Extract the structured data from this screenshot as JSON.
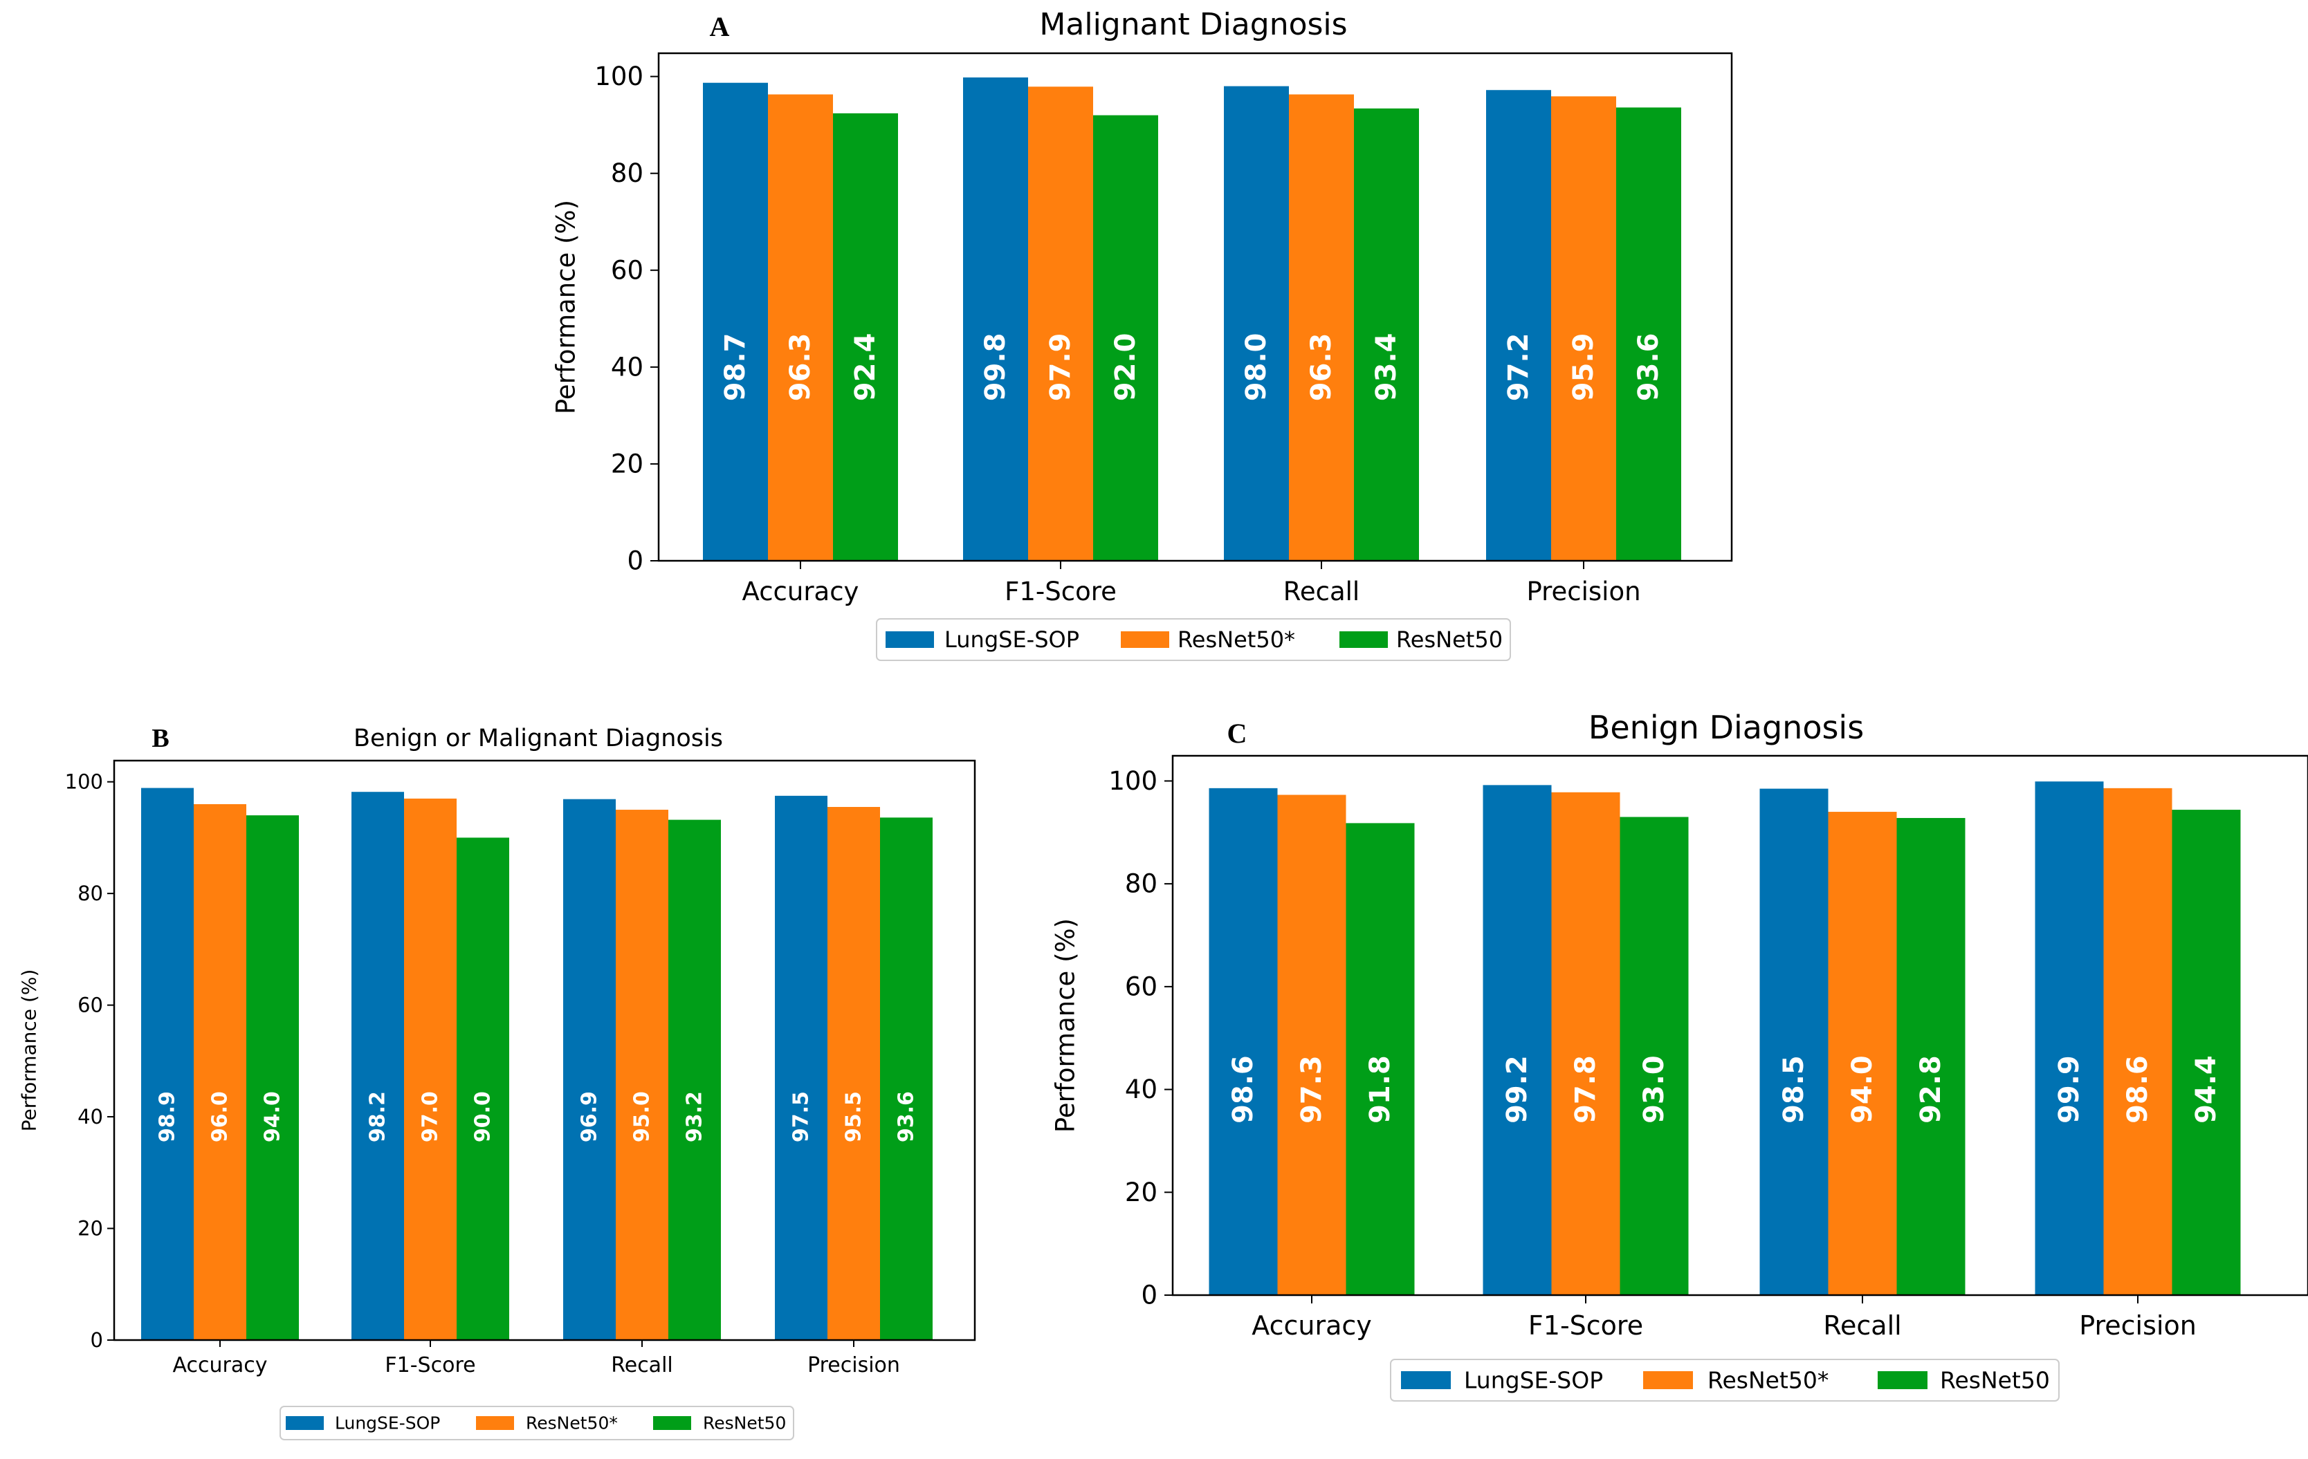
{
  "chart_data": [
    {
      "panel": "A",
      "type": "bar",
      "title": "Malignant Diagnosis",
      "xlabel": "",
      "ylabel": "Performance (%)",
      "ylim": [
        0,
        104.8
      ],
      "yticks": [
        0,
        20,
        40,
        60,
        80,
        100
      ],
      "categories": [
        "Accuracy",
        "F1-Score",
        "Recall",
        "Precision"
      ],
      "series": [
        {
          "name": "LungSE-SOP",
          "color": "#0072b2",
          "values": [
            98.7,
            99.8,
            98.0,
            97.2
          ]
        },
        {
          "name": "ResNet50*",
          "color": "#ff7f0e",
          "values": [
            96.3,
            97.9,
            96.3,
            95.9
          ]
        },
        {
          "name": "ResNet50",
          "color": "#009e18",
          "values": [
            92.4,
            92.0,
            93.4,
            93.6
          ]
        }
      ],
      "legend": "bottom-center",
      "grid": false
    },
    {
      "panel": "B",
      "type": "bar",
      "title": "Benign or Malignant Diagnosis",
      "xlabel": "",
      "ylabel": "Performance (%)",
      "ylim": [
        0,
        103.8
      ],
      "yticks": [
        0,
        20,
        40,
        60,
        80,
        100
      ],
      "categories": [
        "Accuracy",
        "F1-Score",
        "Recall",
        "Precision"
      ],
      "series": [
        {
          "name": "LungSE-SOP",
          "color": "#0072b2",
          "values": [
            98.9,
            98.2,
            96.9,
            97.5
          ]
        },
        {
          "name": "ResNet50*",
          "color": "#ff7f0e",
          "values": [
            96.0,
            97.0,
            95.0,
            95.5
          ]
        },
        {
          "name": "ResNet50",
          "color": "#009e18",
          "values": [
            94.0,
            90.0,
            93.2,
            93.6
          ]
        }
      ],
      "legend": "bottom-center",
      "grid": false
    },
    {
      "panel": "C",
      "type": "bar",
      "title": "Benign Diagnosis",
      "xlabel": "",
      "ylabel": "Performance (%)",
      "ylim": [
        0,
        104.9
      ],
      "yticks": [
        0,
        20,
        40,
        60,
        80,
        100
      ],
      "categories": [
        "Accuracy",
        "F1-Score",
        "Recall",
        "Precision"
      ],
      "series": [
        {
          "name": "LungSE-SOP",
          "color": "#0072b2",
          "values": [
            98.6,
            99.2,
            98.5,
            99.9
          ]
        },
        {
          "name": "ResNet50*",
          "color": "#ff7f0e",
          "values": [
            97.3,
            97.8,
            94.0,
            98.6
          ]
        },
        {
          "name": "ResNet50",
          "color": "#009e18",
          "values": [
            91.8,
            93.0,
            92.8,
            94.4
          ]
        }
      ],
      "legend": "bottom-center",
      "grid": false
    }
  ]
}
